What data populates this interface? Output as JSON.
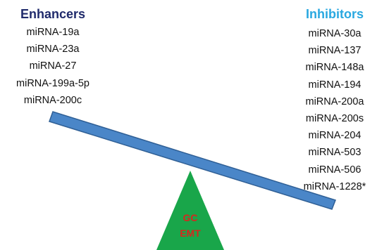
{
  "enhancers": {
    "title": "Enhancers",
    "items": [
      "miRNA-19a",
      "miRNA-23a",
      "miRNA-27",
      "miRNA-199a-5p",
      "miRNA-200c"
    ]
  },
  "inhibitors": {
    "title": "Inhibitors",
    "items": [
      "miRNA-30a",
      "miRNA-137",
      "miRNA-148a",
      "miRNA-194",
      "miRNA-200a",
      "miRNA-200s",
      "miRNA-204",
      "miRNA-503",
      "miRNA-506",
      "miRNA-1228*"
    ]
  },
  "fulcrum": {
    "label_line1": "GC",
    "label_line2": "EMT"
  },
  "colors": {
    "enhancers_title": "#1f2a6b",
    "inhibitors_title": "#29a8e0",
    "beam_fill": "#4a86c8",
    "beam_stroke": "#2f5f95",
    "fulcrum_fill": "#19a64a",
    "fulcrum_label": "#d7261e"
  }
}
